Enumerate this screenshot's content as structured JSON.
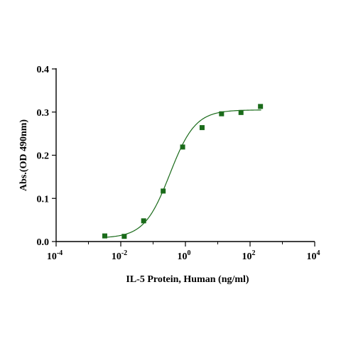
{
  "chart_data": {
    "type": "scatter",
    "title": "",
    "xlabel": "IL-5 Protein, Human (ng/ml)",
    "ylabel": "Abs.(OD 490nm)",
    "x_scale": "log",
    "xlim": [
      0.0001,
      10000
    ],
    "ylim": [
      0,
      0.4
    ],
    "x_ticks": [
      {
        "value": 0.0001,
        "base": "10",
        "exp": "-4"
      },
      {
        "value": 0.01,
        "base": "10",
        "exp": "-2"
      },
      {
        "value": 1,
        "base": "10",
        "exp": "0"
      },
      {
        "value": 100,
        "base": "10",
        "exp": "2"
      },
      {
        "value": 10000,
        "base": "10",
        "exp": "4"
      }
    ],
    "y_ticks": [
      "0.0",
      "0.1",
      "0.2",
      "0.3",
      "0.4"
    ],
    "grid": false,
    "series": [
      {
        "color": "#1a6b1a",
        "x": [
          0.0032,
          0.0128,
          0.051,
          0.205,
          0.82,
          3.28,
          13.1,
          52.4,
          210
        ],
        "y": [
          0.013,
          0.012,
          0.048,
          0.117,
          0.219,
          0.264,
          0.296,
          0.299,
          0.313
        ]
      }
    ],
    "fit": {
      "type": "4PL",
      "color": "#1a6b1a",
      "bottom": 0.008,
      "top": 0.305,
      "ec50": 0.33,
      "hill": 1.1
    }
  }
}
